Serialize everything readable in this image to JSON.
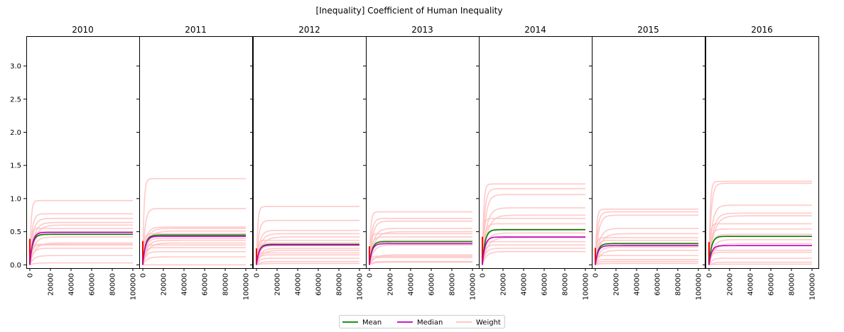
{
  "title": "[Inequality] Coefficient of Human Inequality",
  "chart_data": {
    "type": "line",
    "title": "[Inequality] Coefficient of Human Inequality",
    "xlim": [
      0,
      100000
    ],
    "ylim": [
      -0.05,
      3.45
    ],
    "x_ticks": [
      "0",
      "20000",
      "40000",
      "60000",
      "80000",
      "100000"
    ],
    "y_ticks": [
      "0.0",
      "0.5",
      "1.0",
      "1.5",
      "2.0",
      "2.5",
      "3.0"
    ],
    "grid": false,
    "legend_position": "bottom-center",
    "legend": [
      {
        "label": "Mean",
        "color": "#008000"
      },
      {
        "label": "Median",
        "color": "#bf00bf"
      },
      {
        "label": "Weight",
        "color": "#ffc0c0"
      }
    ],
    "panels": [
      {
        "title": "2010",
        "mean": 0.46,
        "median": 0.49,
        "weights": [
          0.97,
          0.77,
          0.7,
          0.64,
          0.6,
          0.55,
          0.5,
          0.46,
          0.42,
          0.33,
          0.31,
          0.3,
          0.25,
          0.14,
          0.03
        ]
      },
      {
        "title": "2011",
        "mean": 0.45,
        "median": 0.43,
        "weights": [
          1.3,
          0.85,
          0.57,
          0.55,
          0.51,
          0.47,
          0.43,
          0.4,
          0.37,
          0.33,
          0.3,
          0.26,
          0.2,
          0.12,
          0.0
        ]
      },
      {
        "title": "2012",
        "mean": 0.31,
        "median": 0.3,
        "weights": [
          0.88,
          0.67,
          0.52,
          0.47,
          0.42,
          0.37,
          0.33,
          0.29,
          0.25,
          0.22,
          0.18,
          0.15,
          0.1,
          0.05,
          0.02
        ]
      },
      {
        "title": "2013",
        "mean": 0.35,
        "median": 0.32,
        "weights": [
          0.8,
          0.7,
          0.66,
          0.55,
          0.5,
          0.47,
          0.42,
          0.37,
          0.3,
          0.15,
          0.13,
          0.11,
          0.05,
          0.04
        ]
      },
      {
        "title": "2014",
        "mean": 0.53,
        "median": 0.42,
        "weights": [
          1.22,
          1.15,
          1.06,
          0.86,
          0.75,
          0.7,
          0.62,
          0.54,
          0.48,
          0.41,
          0.35,
          0.3,
          0.25,
          0.2
        ]
      },
      {
        "title": "2015",
        "mean": 0.32,
        "median": 0.29,
        "weights": [
          0.84,
          0.8,
          0.75,
          0.55,
          0.47,
          0.41,
          0.37,
          0.33,
          0.27,
          0.22,
          0.14,
          0.08,
          0.05,
          0.02
        ]
      },
      {
        "title": "2016",
        "mean": 0.43,
        "median": 0.29,
        "weights": [
          1.26,
          1.23,
          0.9,
          0.78,
          0.74,
          0.62,
          0.54,
          0.46,
          0.38,
          0.32,
          0.22,
          0.19,
          0.1,
          0.04,
          0.01
        ]
      }
    ]
  }
}
